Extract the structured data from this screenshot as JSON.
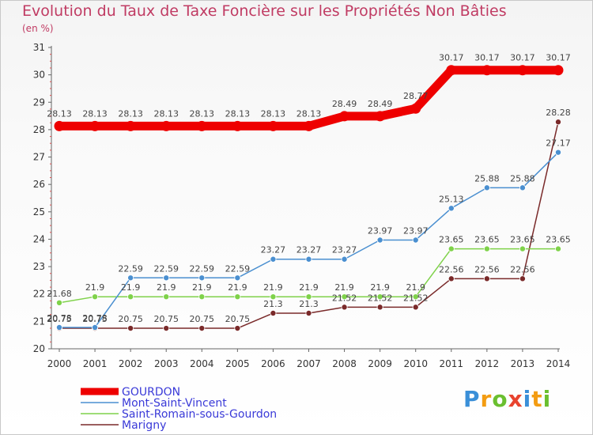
{
  "title": "Evolution du Taux de Taxe Foncière sur les Propriétés Non Bâties",
  "unit_label": "(en %)",
  "logo": {
    "text": "Proxiti",
    "letters": [
      "P",
      "r",
      "o",
      "x",
      "i",
      "t",
      "i"
    ],
    "colors": [
      "#3a8fd8",
      "#f39c12",
      "#6abf2f",
      "#e8432e",
      "#3a8fd8",
      "#f39c12",
      "#6abf2f"
    ]
  },
  "chart_data": {
    "type": "line",
    "title": "Evolution du Taux de Taxe Foncière sur les Propriétés Non Bâties",
    "ylabel": "(en %)",
    "ylim": [
      20,
      31
    ],
    "yticks": [
      "20",
      "21",
      "22",
      "23",
      "24",
      "25",
      "26",
      "27",
      "28",
      "29",
      "30",
      "31"
    ],
    "x": [
      "2000",
      "2001",
      "2002",
      "2003",
      "2004",
      "2005",
      "2006",
      "2007",
      "2008",
      "2009",
      "2010",
      "2011",
      "2012",
      "2013",
      "2014"
    ],
    "grid": false,
    "legend_position": "bottom-left",
    "series": [
      {
        "name": "GOURDON",
        "color": "#ee0000",
        "values": [
          28.13,
          28.13,
          28.13,
          28.13,
          28.13,
          28.13,
          28.13,
          28.13,
          28.49,
          28.49,
          28.77,
          30.17,
          30.17,
          30.17,
          30.17
        ],
        "labels": [
          "28.13",
          "28.13",
          "28.13",
          "28.13",
          "28.13",
          "28.13",
          "28.13",
          "28.13",
          "28.49",
          "28.49",
          "28.77",
          "30.17",
          "30.17",
          "30.17",
          "30.17"
        ]
      },
      {
        "name": "Mont-Saint-Vincent",
        "color": "#4a8fd0",
        "values": [
          20.78,
          20.78,
          22.59,
          22.59,
          22.59,
          22.59,
          23.27,
          23.27,
          23.27,
          23.97,
          23.97,
          25.13,
          25.88,
          25.88,
          27.17
        ],
        "labels": [
          "20.78",
          "20.78",
          "22.59",
          "22.59",
          "22.59",
          "22.59",
          "23.27",
          "23.27",
          "23.27",
          "23.97",
          "23.97",
          "25.13",
          "25.88",
          "25.88",
          "27.17"
        ]
      },
      {
        "name": "Saint-Romain-sous-Gourdon",
        "color": "#7fd24a",
        "values": [
          21.68,
          21.9,
          21.9,
          21.9,
          21.9,
          21.9,
          21.9,
          21.9,
          21.9,
          21.9,
          21.9,
          23.65,
          23.65,
          23.65,
          23.65
        ],
        "labels": [
          "21.68",
          "21.9",
          "21.9",
          "21.9",
          "21.9",
          "21.9",
          "21.9",
          "21.9",
          "21.9",
          "21.9",
          "21.9",
          "23.65",
          "23.65",
          "23.65",
          "23.65"
        ]
      },
      {
        "name": "Marigny",
        "color": "#7a2a2a",
        "values": [
          20.75,
          20.75,
          20.75,
          20.75,
          20.75,
          20.75,
          21.3,
          21.3,
          21.52,
          21.52,
          21.52,
          22.56,
          22.56,
          22.56,
          28.28
        ],
        "labels": [
          "20.75",
          "20.75",
          "20.75",
          "20.75",
          "20.75",
          "20.75",
          "21.3",
          "21.3",
          "21.52",
          "21.52",
          "21.52",
          "22.56",
          "22.56",
          "22.56",
          "28.28"
        ]
      }
    ]
  }
}
